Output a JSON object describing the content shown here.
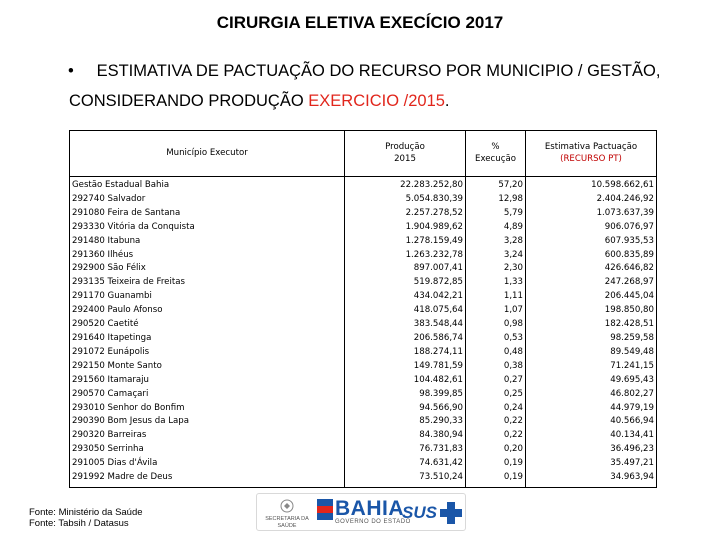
{
  "title": "CIRURGIA ELETIVA EXECÍCIO 2017",
  "bullet": {
    "symbol": "•",
    "line1": "ESTIMATIVA DE PACTUAÇÃO DO RECURSO POR MUNICIPIO / GESTÃO,",
    "line2_pre": "CONSIDERANDO PRODUÇÃO ",
    "line2_red": "EXERCICIO /2015",
    "line2_post": "."
  },
  "table": {
    "headers": {
      "municipio": "Município Executor",
      "producao_l1": "Produção",
      "producao_l2": "2015",
      "pct_l1": "%",
      "pct_l2": "Execução",
      "est_l1": "Estimativa Pactuação",
      "est_l2": "(RECURSO PT)"
    },
    "rows": [
      {
        "municipio": "Gestão Estadual Bahia",
        "producao": "22.283.252,80",
        "pct": "57,20",
        "estimativa": "10.598.662,61"
      },
      {
        "municipio": "292740 Salvador",
        "producao": "5.054.830,39",
        "pct": "12,98",
        "estimativa": "2.404.246,92"
      },
      {
        "municipio": "291080 Feira de Santana",
        "producao": "2.257.278,52",
        "pct": "5,79",
        "estimativa": "1.073.637,39"
      },
      {
        "municipio": "293330 Vitória da Conquista",
        "producao": "1.904.989,62",
        "pct": "4,89",
        "estimativa": "906.076,97"
      },
      {
        "municipio": "291480 Itabuna",
        "producao": "1.278.159,49",
        "pct": "3,28",
        "estimativa": "607.935,53"
      },
      {
        "municipio": "291360 Ilhéus",
        "producao": "1.263.232,78",
        "pct": "3,24",
        "estimativa": "600.835,89"
      },
      {
        "municipio": "292900 São Félix",
        "producao": "897.007,41",
        "pct": "2,30",
        "estimativa": "426.646,82"
      },
      {
        "municipio": "293135 Teixeira de Freitas",
        "producao": "519.872,85",
        "pct": "1,33",
        "estimativa": "247.268,97"
      },
      {
        "municipio": "291170 Guanambi",
        "producao": "434.042,21",
        "pct": "1,11",
        "estimativa": "206.445,04"
      },
      {
        "municipio": "292400 Paulo Afonso",
        "producao": "418.075,64",
        "pct": "1,07",
        "estimativa": "198.850,80"
      },
      {
        "municipio": "290520 Caetité",
        "producao": "383.548,44",
        "pct": "0,98",
        "estimativa": "182.428,51"
      },
      {
        "municipio": "291640 Itapetinga",
        "producao": "206.586,74",
        "pct": "0,53",
        "estimativa": "98.259,58"
      },
      {
        "municipio": "291072 Eunápolis",
        "producao": "188.274,11",
        "pct": "0,48",
        "estimativa": "89.549,48"
      },
      {
        "municipio": "292150 Monte Santo",
        "producao": "149.781,59",
        "pct": "0,38",
        "estimativa": "71.241,15"
      },
      {
        "municipio": "291560 Itamaraju",
        "producao": "104.482,61",
        "pct": "0,27",
        "estimativa": "49.695,43"
      },
      {
        "municipio": "290570 Camaçari",
        "producao": "98.399,85",
        "pct": "0,25",
        "estimativa": "46.802,27"
      },
      {
        "municipio": "293010 Senhor do Bonfim",
        "producao": "94.566,90",
        "pct": "0,24",
        "estimativa": "44.979,19"
      },
      {
        "municipio": "290390 Bom Jesus da Lapa",
        "producao": "85.290,33",
        "pct": "0,22",
        "estimativa": "40.566,94"
      },
      {
        "municipio": "290320 Barreiras",
        "producao": "84.380,94",
        "pct": "0,22",
        "estimativa": "40.134,41"
      },
      {
        "municipio": "293050 Serrinha",
        "producao": "76.731,83",
        "pct": "0,20",
        "estimativa": "36.496,23"
      },
      {
        "municipio": "291005 Dias d'Ávila",
        "producao": "74.631,42",
        "pct": "0,19",
        "estimativa": "35.497,21"
      },
      {
        "municipio": "291992 Madre de Deus",
        "producao": "73.510,24",
        "pct": "0,19",
        "estimativa": "34.963,94"
      }
    ]
  },
  "source": {
    "line1": "Fonte: Ministério da Saúde",
    "line2": "Fonte: Tabsih / Datasus"
  },
  "logos": {
    "secretaria": "SECRETARIA DA SAÚDE",
    "bahia": "BAHIA",
    "governo": "GOVERNO DO ESTADO",
    "sus": "SUS",
    "colors": {
      "blue": "#1a56a8",
      "red": "#e1261c",
      "green": "#2e9e44"
    }
  }
}
